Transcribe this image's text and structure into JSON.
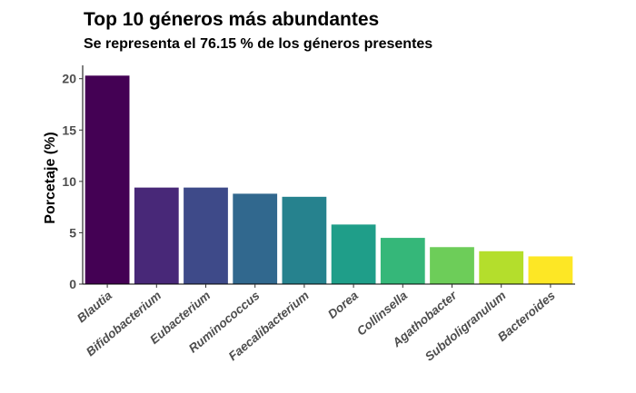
{
  "chart_data": {
    "type": "bar",
    "title": "Top 10 géneros más abundantes",
    "subtitle": "Se representa el 76.15 % de los géneros presentes",
    "xlabel": "",
    "ylabel": "Porcetaje (%)",
    "categories": [
      "Blautia",
      "Bifidobacterium",
      "Eubacterium",
      "Ruminococcus",
      "Faecalibacterium",
      "Dorea",
      "Collinsella",
      "Agathobacter",
      "Subdoligranulum",
      "Bacteroides"
    ],
    "values": [
      20.3,
      9.4,
      9.4,
      8.8,
      8.5,
      5.8,
      4.5,
      3.6,
      3.2,
      2.7
    ],
    "colors": [
      "#440154",
      "#482878",
      "#3E4A89",
      "#31688E",
      "#26828E",
      "#1F9E89",
      "#35B779",
      "#6DCD59",
      "#B4DE2C",
      "#FDE725"
    ],
    "ylim": [
      0,
      21.3
    ],
    "yticks": [
      0,
      5,
      10,
      15,
      20
    ],
    "grid": false,
    "legend": "none"
  }
}
